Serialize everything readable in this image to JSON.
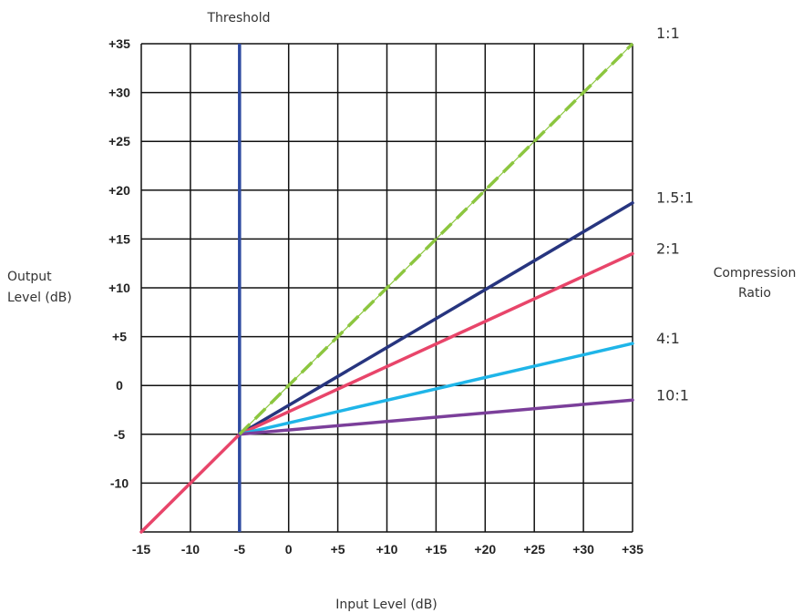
{
  "chart_data": {
    "type": "line",
    "title": "",
    "top_label": "Threshold",
    "xlabel": "Input Level (dB)",
    "ylabel_lines": [
      "Output",
      "Level (dB)"
    ],
    "legend_title_lines": [
      "Compression",
      "Ratio"
    ],
    "xlim": [
      -15,
      35
    ],
    "ylim": [
      -15,
      35
    ],
    "x_ticks": [
      {
        "v": -15,
        "label": "-15"
      },
      {
        "v": -10,
        "label": "-10"
      },
      {
        "v": -5,
        "label": "-5"
      },
      {
        "v": 0,
        "label": "0"
      },
      {
        "v": 5,
        "label": "+5"
      },
      {
        "v": 10,
        "label": "+10"
      },
      {
        "v": 15,
        "label": "+15"
      },
      {
        "v": 20,
        "label": "+20"
      },
      {
        "v": 25,
        "label": "+25"
      },
      {
        "v": 30,
        "label": "+30"
      },
      {
        "v": 35,
        "label": "+35"
      }
    ],
    "y_ticks": [
      {
        "v": 35,
        "label": "+35"
      },
      {
        "v": 30,
        "label": "+30"
      },
      {
        "v": 25,
        "label": "+25"
      },
      {
        "v": 20,
        "label": "+20"
      },
      {
        "v": 15,
        "label": "+15"
      },
      {
        "v": 10,
        "label": "+10"
      },
      {
        "v": 5,
        "label": "+5"
      },
      {
        "v": 0,
        "label": "0"
      },
      {
        "v": -5,
        "label": "-5"
      },
      {
        "v": -10,
        "label": "-10"
      }
    ],
    "grid": true,
    "threshold": {
      "x": -5,
      "color": "#2e4aa0"
    },
    "series": [
      {
        "name": "1:1",
        "color": "#8cc63f",
        "style": "dashed",
        "points": [
          [
            -5,
            -5
          ],
          [
            35,
            35
          ]
        ]
      },
      {
        "name": "1.5:1",
        "color": "#27357f",
        "style": "solid",
        "points": [
          [
            -5,
            -5
          ],
          [
            35,
            18.7
          ]
        ]
      },
      {
        "name": "2:1",
        "color": "#e8456a",
        "style": "solid",
        "points": [
          [
            -15,
            -15
          ],
          [
            -5,
            -5
          ],
          [
            35,
            13.5
          ]
        ]
      },
      {
        "name": "4:1",
        "color": "#1fb5e8",
        "style": "solid",
        "points": [
          [
            -5,
            -5
          ],
          [
            35,
            4.3
          ]
        ]
      },
      {
        "name": "10:1",
        "color": "#7b3f9a",
        "style": "solid",
        "points": [
          [
            -5,
            -5
          ],
          [
            35,
            -1.5
          ]
        ]
      }
    ]
  }
}
